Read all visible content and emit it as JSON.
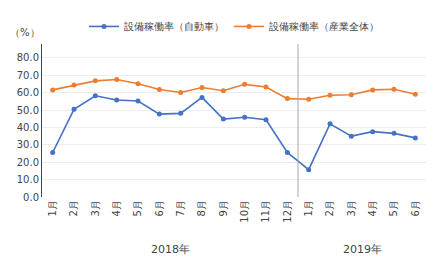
{
  "chart_data": {
    "type": "line",
    "ylabel": "（%）",
    "categories": [
      "1月",
      "2月",
      "3月",
      "4月",
      "5月",
      "6月",
      "7月",
      "8月",
      "9月",
      "10月",
      "11月",
      "12月",
      "1月",
      "2月",
      "3月",
      "4月",
      "5月",
      "6月"
    ],
    "series": [
      {
        "name": "設備稼働率（自動車）",
        "color": "#4472C4",
        "marker": "circle",
        "values": [
          25.6,
          50.4,
          58.2,
          55.8,
          55.2,
          47.7,
          48.1,
          57.3,
          44.8,
          45.9,
          44.4,
          25.6,
          15.7,
          42.1,
          35.0,
          37.6,
          36.6,
          34.0
        ]
      },
      {
        "name": "設備稼働率（産業全体）",
        "color": "#ED7D31",
        "marker": "circle",
        "values": [
          61.6,
          64.4,
          66.8,
          67.6,
          65.1,
          61.8,
          60.1,
          63.0,
          61.1,
          64.8,
          63.3,
          56.6,
          56.2,
          58.5,
          58.8,
          61.6,
          62.0,
          59.1
        ]
      }
    ],
    "annotations": [
      "2018年",
      "2019年"
    ],
    "ylim": [
      0.0,
      88.0
    ],
    "yticks": [
      {
        "value": 0,
        "label": "0.0"
      },
      {
        "value": 10,
        "label": "10.0"
      },
      {
        "value": 20,
        "label": "20.0"
      },
      {
        "value": 30,
        "label": "30.0"
      },
      {
        "value": 40,
        "label": "40.0"
      },
      {
        "value": 50,
        "label": "50.0"
      },
      {
        "value": 60,
        "label": "60.0"
      },
      {
        "value": 70,
        "label": "70.0"
      },
      {
        "value": 80,
        "label": "80.0"
      }
    ],
    "grid": true,
    "legend": "top"
  }
}
